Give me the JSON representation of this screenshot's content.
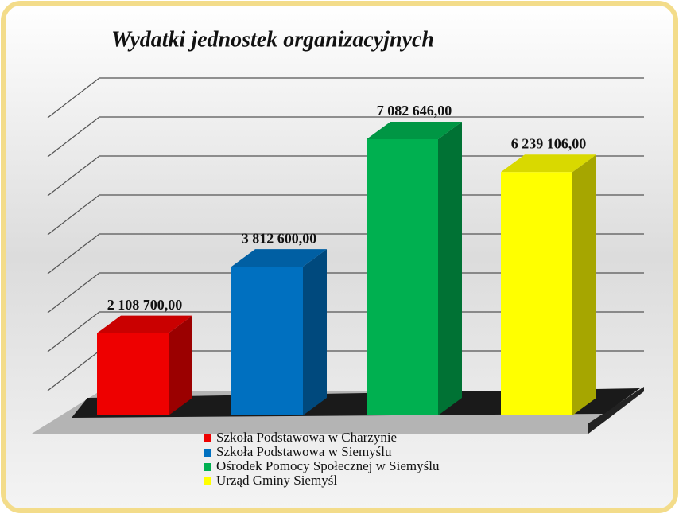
{
  "chart_data": {
    "type": "bar3d",
    "title": "Wydatki jednostek organizacyjnych",
    "series": [
      {
        "name": "Szkoła Podstawowa w Charzynie",
        "color": "#ee0000",
        "values": [
          2108700
        ],
        "value_labels": [
          "2 108 700,00"
        ]
      },
      {
        "name": "Szkoła Podstawowa w Siemyślu",
        "color": "#0070c0",
        "values": [
          3812600
        ],
        "value_labels": [
          "3 812 600,00"
        ]
      },
      {
        "name": "Ośrodek Pomocy Społecznej w Siemyślu",
        "color": "#00b050",
        "values": [
          7082646
        ],
        "value_labels": [
          "7 082 646,00"
        ]
      },
      {
        "name": "Urząd Gminy Siemyśl",
        "color": "#ffff00",
        "values": [
          6239106
        ],
        "value_labels": [
          "6 239 106,00"
        ]
      }
    ],
    "ylim": [
      0,
      8000000
    ],
    "yticks": [
      0,
      1000000,
      2000000,
      3000000,
      4000000,
      5000000,
      6000000,
      7000000,
      8000000
    ],
    "grid": true
  }
}
